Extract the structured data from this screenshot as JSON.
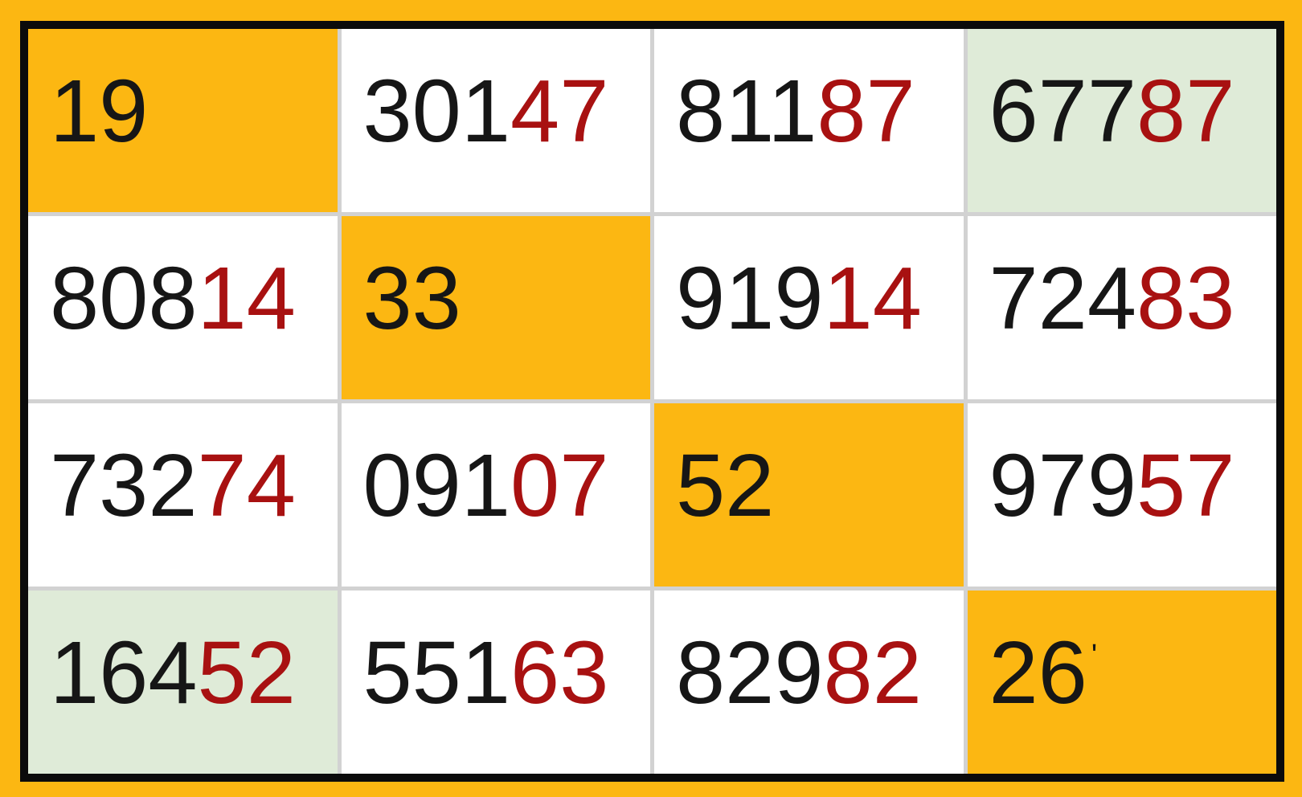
{
  "colors": {
    "frame": "#FCB712",
    "border": "#0B0B0B",
    "separator": "#D2D2D2",
    "cell_white": "#FFFFFF",
    "cell_orange": "#FCB712",
    "cell_green": "#DFEBD8",
    "digit_black": "#161616",
    "digit_red": "#A81111"
  },
  "grid": {
    "rows": 4,
    "cols": 4,
    "cells": [
      {
        "id": "r1c1",
        "bg": "orange",
        "segments": [
          {
            "text": "19",
            "color": "black"
          }
        ]
      },
      {
        "id": "r1c2",
        "bg": "white",
        "segments": [
          {
            "text": "301",
            "color": "black"
          },
          {
            "text": "47",
            "color": "red"
          }
        ]
      },
      {
        "id": "r1c3",
        "bg": "white",
        "segments": [
          {
            "text": "811",
            "color": "black"
          },
          {
            "text": "87",
            "color": "red"
          }
        ]
      },
      {
        "id": "r1c4",
        "bg": "green",
        "segments": [
          {
            "text": "677",
            "color": "black"
          },
          {
            "text": "87",
            "color": "red"
          }
        ]
      },
      {
        "id": "r2c1",
        "bg": "white",
        "segments": [
          {
            "text": "808",
            "color": "black"
          },
          {
            "text": "14",
            "color": "red"
          }
        ]
      },
      {
        "id": "r2c2",
        "bg": "orange",
        "segments": [
          {
            "text": "33",
            "color": "black"
          }
        ]
      },
      {
        "id": "r2c3",
        "bg": "white",
        "segments": [
          {
            "text": "919",
            "color": "black"
          },
          {
            "text": "14",
            "color": "red"
          }
        ]
      },
      {
        "id": "r2c4",
        "bg": "white",
        "segments": [
          {
            "text": "724",
            "color": "black"
          },
          {
            "text": "83",
            "color": "red"
          }
        ]
      },
      {
        "id": "r3c1",
        "bg": "white",
        "segments": [
          {
            "text": "732",
            "color": "black"
          },
          {
            "text": "74",
            "color": "red"
          }
        ]
      },
      {
        "id": "r3c2",
        "bg": "white",
        "segments": [
          {
            "text": "091",
            "color": "black"
          },
          {
            "text": "07",
            "color": "red"
          }
        ]
      },
      {
        "id": "r3c3",
        "bg": "orange",
        "segments": [
          {
            "text": "52",
            "color": "black"
          }
        ]
      },
      {
        "id": "r3c4",
        "bg": "white",
        "segments": [
          {
            "text": "979",
            "color": "black"
          },
          {
            "text": "57",
            "color": "red"
          }
        ]
      },
      {
        "id": "r4c1",
        "bg": "green",
        "segments": [
          {
            "text": "164",
            "color": "black"
          },
          {
            "text": "52",
            "color": "red"
          }
        ]
      },
      {
        "id": "r4c2",
        "bg": "white",
        "segments": [
          {
            "text": "551",
            "color": "black"
          },
          {
            "text": "63",
            "color": "red"
          }
        ]
      },
      {
        "id": "r4c3",
        "bg": "white",
        "segments": [
          {
            "text": "829",
            "color": "black"
          },
          {
            "text": "82",
            "color": "red"
          }
        ]
      },
      {
        "id": "r4c4",
        "bg": "orange",
        "segments": [
          {
            "text": "26",
            "color": "black"
          },
          {
            "text": "'",
            "color": "black",
            "tick": true
          }
        ]
      }
    ]
  }
}
